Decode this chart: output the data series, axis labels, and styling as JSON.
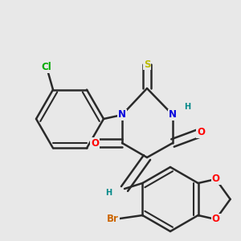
{
  "bg_color": "#e8e8e8",
  "bond_color": "#2a2a2a",
  "bond_width": 1.8,
  "atom_colors": {
    "N": "#0000dd",
    "S": "#bbbb00",
    "O": "#ff0000",
    "Cl": "#00aa00",
    "Br": "#cc6600",
    "H": "#008888",
    "C": "#2a2a2a"
  },
  "font_size_atom": 8.5,
  "font_size_small": 7.0,
  "dbo": 0.12
}
